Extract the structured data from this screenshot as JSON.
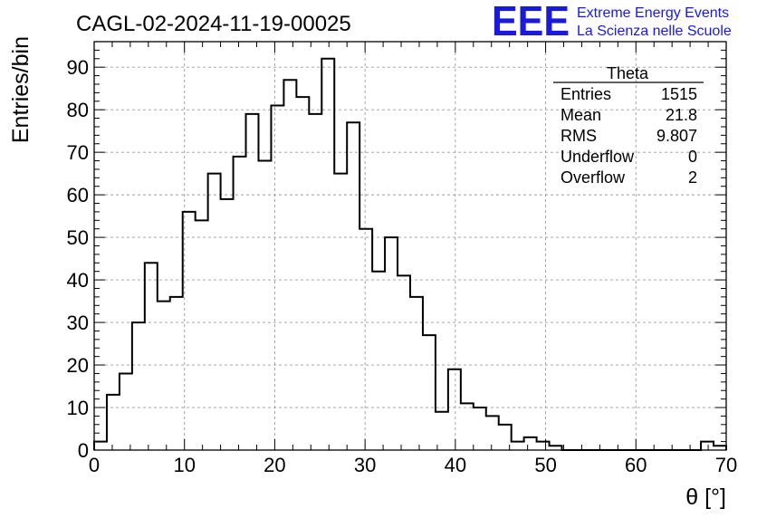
{
  "chart_data": {
    "type": "bar",
    "title": "CAGL-02-2024-11-19-00025",
    "xlabel": "θ [°]",
    "ylabel": "Entries/bin",
    "xlim": [
      0,
      70
    ],
    "ylim": [
      0,
      96
    ],
    "bin_width": 1.4,
    "x_ticks": [
      0,
      10,
      20,
      30,
      40,
      50,
      60,
      70
    ],
    "y_ticks": [
      0,
      10,
      20,
      30,
      40,
      50,
      60,
      70,
      80,
      90
    ],
    "grid": true,
    "values": [
      2,
      13,
      18,
      30,
      44,
      35,
      36,
      56,
      54,
      65,
      59,
      69,
      79,
      68,
      81,
      87,
      83,
      79,
      92,
      65,
      77,
      52,
      42,
      50,
      41,
      36,
      27,
      9,
      19,
      11,
      10,
      8,
      6,
      2,
      3,
      2,
      1,
      0,
      0,
      0,
      0,
      0,
      0,
      0,
      0,
      0,
      0,
      0,
      2,
      1
    ],
    "line_color": "#000000"
  },
  "stats": {
    "title": "Theta",
    "rows": [
      {
        "label": "Entries",
        "value": "1515"
      },
      {
        "label": "Mean",
        "value": "21.8"
      },
      {
        "label": "RMS",
        "value": "9.807"
      },
      {
        "label": "Underflow",
        "value": "0"
      },
      {
        "label": "Overflow",
        "value": "2"
      }
    ]
  },
  "logo": {
    "mark": "EEE",
    "line1": "Extreme Energy Events",
    "line2": "La Scienza nelle Scuole",
    "color": "#1a1adc"
  }
}
